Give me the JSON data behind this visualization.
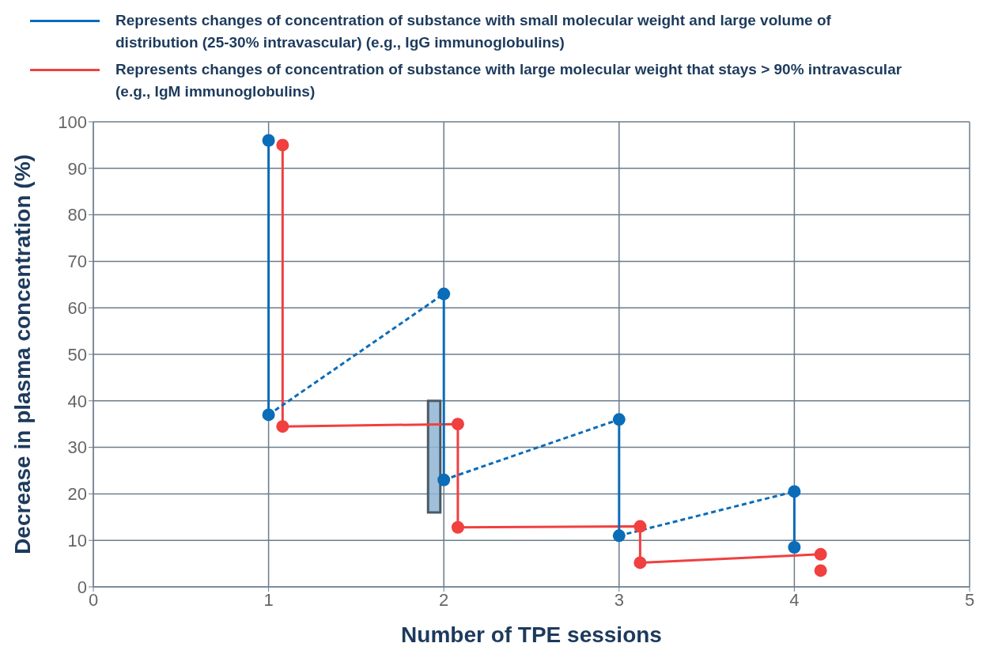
{
  "chart_data": {
    "type": "line",
    "xlabel": "Number of TPE sessions",
    "ylabel": "Decrease in plasma concentration (%)",
    "xlim": [
      0,
      5
    ],
    "xticks": [
      0,
      1,
      2,
      3,
      4,
      5
    ],
    "ylim": [
      0,
      100
    ],
    "yticks": [
      0,
      10,
      20,
      30,
      40,
      50,
      60,
      70,
      80,
      90,
      100
    ],
    "grid": true,
    "legend": "top",
    "marker": "circle",
    "series": [
      {
        "name": "Represents changes of concentration of substance with small molecular weight and large volume of distribution (25-30% intravascular) (e.g.,  IgG immunoglobulins)",
        "color": "#0b6cb8",
        "line_style": "solid",
        "x": [
          1,
          1
        ],
        "values": [
          96,
          37
        ]
      },
      {
        "name": "Represents changes of concentration of substance with large molecular weight that stays > 90% intravascular (e.g., IgM immunoglobulins)",
        "color": "#f04040",
        "line_style": "solid",
        "x": [
          1.08,
          1.08,
          2.08,
          2.08,
          3.12,
          3.12,
          4.15
        ],
        "values": [
          95,
          34.5,
          35,
          12.8,
          13,
          5.2,
          7
        ]
      },
      {
        "type": "scatter",
        "color": "#f04040",
        "x": [
          4.15
        ],
        "values": [
          3.5
        ]
      },
      {
        "color": "#0b6cb8",
        "line_style": "solid",
        "x": [
          2,
          2
        ],
        "values": [
          63,
          23
        ]
      },
      {
        "color": "#0b6cb8",
        "line_style": "solid",
        "x": [
          3,
          3
        ],
        "values": [
          36,
          11
        ]
      },
      {
        "color": "#0b6cb8",
        "line_style": "solid",
        "x": [
          4,
          4
        ],
        "values": [
          20.5,
          8.5
        ]
      },
      {
        "color": "#0b6cb8",
        "line_style": "dashed",
        "marker": "none",
        "x": [
          1,
          2
        ],
        "values": [
          37,
          63
        ]
      },
      {
        "color": "#0b6cb8",
        "line_style": "dashed",
        "marker": "none",
        "x": [
          2,
          3
        ],
        "values": [
          23,
          36
        ]
      },
      {
        "color": "#0b6cb8",
        "line_style": "dashed",
        "marker": "none",
        "x": [
          3,
          4
        ],
        "values": [
          11,
          20.5
        ]
      }
    ]
  }
}
